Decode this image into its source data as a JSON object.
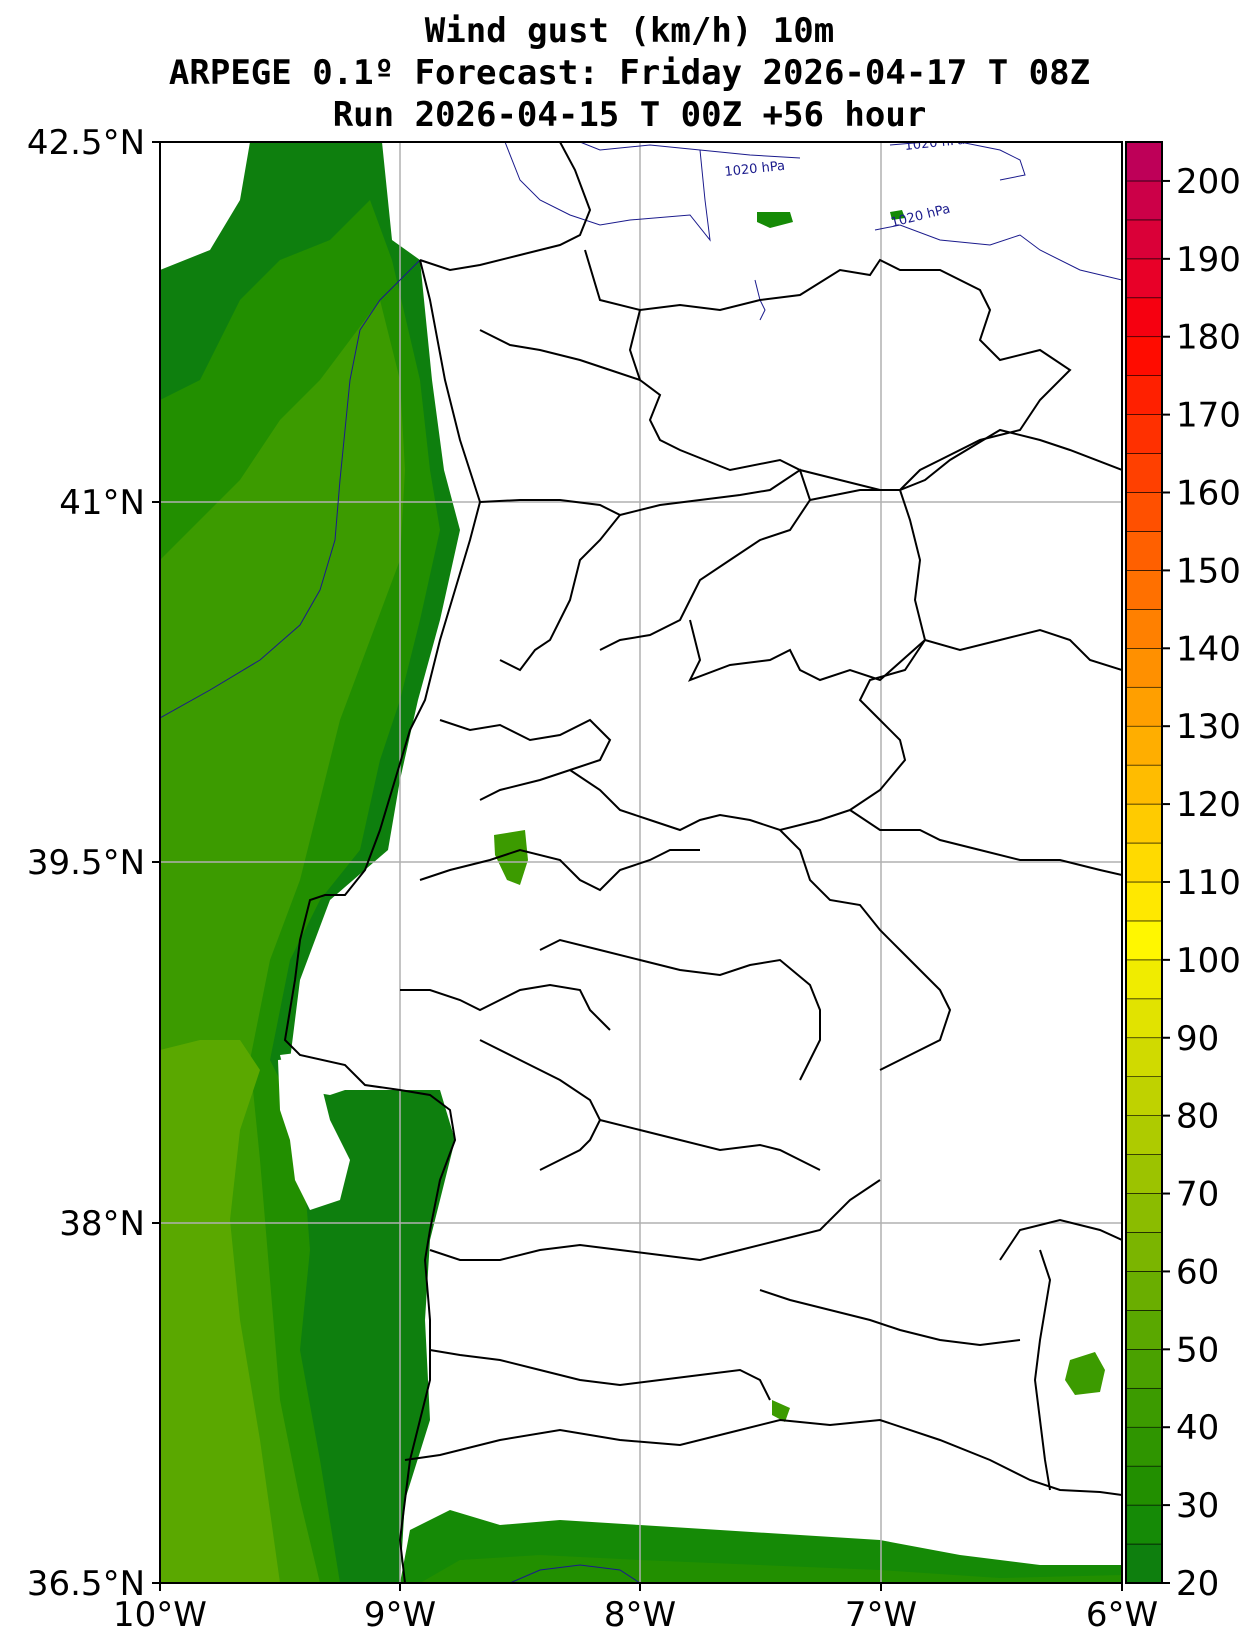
{
  "title": {
    "line1": "Wind gust (km/h) 10m",
    "line2": "ARPEGE 0.1º Forecast: Friday 2026-04-17 T 08Z",
    "line3": "Run 2026-04-15 T 00Z +56 hour"
  },
  "axes": {
    "lon_labels": [
      "10°W",
      "9°W",
      "8°W",
      "7°W",
      "6°W"
    ],
    "lat_labels": [
      "42.5°N",
      "41°N",
      "39.5°N",
      "38°N",
      "36.5°N"
    ]
  },
  "isobar_labels": [
    "1020 hPa",
    "1020 hPa",
    "1020 hPa"
  ],
  "colorbar": {
    "min": 20,
    "max": 205,
    "step": 5,
    "tick_labels": [
      "20",
      "30",
      "40",
      "50",
      "60",
      "70",
      "80",
      "90",
      "100",
      "110",
      "120",
      "130",
      "140",
      "150",
      "160",
      "170",
      "180",
      "190",
      "200"
    ],
    "colors": [
      "#0e7f0e",
      "#158a06",
      "#228f00",
      "#2f9500",
      "#3c9b00",
      "#4aa100",
      "#5aa800",
      "#6aae00",
      "#7bb500",
      "#8bbc00",
      "#9cc300",
      "#aecb00",
      "#bfd200",
      "#d0da00",
      "#e1e300",
      "#f0ec00",
      "#fff700",
      "#ffe800",
      "#ffda00",
      "#ffcb00",
      "#ffbc00",
      "#ffae00",
      "#ff9f00",
      "#ff9000",
      "#ff8000",
      "#ff7000",
      "#ff6000",
      "#ff5000",
      "#ff4000",
      "#ff3000",
      "#ff2000",
      "#ff0c00",
      "#f60010",
      "#e80028",
      "#da0038",
      "#cc0048",
      "#be0058",
      "#b00068",
      "#a00078",
      "#900088",
      "#820090",
      "#7a0090"
    ]
  },
  "legend_colors": {
    "land": "#ffffff",
    "border": "#000000",
    "isobar": "#1a1a8c",
    "grid": "#b0b0b0"
  }
}
